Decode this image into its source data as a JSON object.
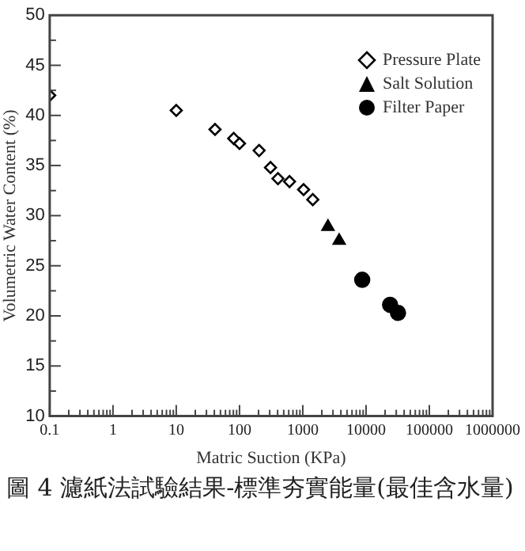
{
  "chart_data": {
    "type": "scatter",
    "xlabel": "Matric Suction (KPa)",
    "ylabel": "Volumetric Water Content (%)",
    "annotations": [
      "圖 4 濾紙法試驗結果-標準夯實能量(最佳含水量)"
    ],
    "log": "x",
    "xlim": [
      0.1,
      1000000
    ],
    "ylim": [
      10,
      50
    ],
    "xticks": [
      {
        "value": 0.1,
        "label": "0.1"
      },
      {
        "value": 0.2,
        "label": null
      },
      {
        "value": 0.3,
        "label": null
      },
      {
        "value": 0.4,
        "label": null
      },
      {
        "value": 0.5,
        "label": null
      },
      {
        "value": 0.6,
        "label": null
      },
      {
        "value": 0.7,
        "label": null
      },
      {
        "value": 0.8,
        "label": null
      },
      {
        "value": 0.9,
        "label": null
      },
      1,
      {
        "value": 2,
        "label": null
      },
      {
        "value": 3,
        "label": null
      },
      {
        "value": 4,
        "label": null
      },
      {
        "value": 5,
        "label": null
      },
      {
        "value": 6,
        "label": null
      },
      {
        "value": 7,
        "label": null
      },
      {
        "value": 8,
        "label": null
      },
      {
        "value": 9,
        "label": null
      },
      10,
      {
        "value": 20,
        "label": null
      },
      {
        "value": 30,
        "label": null
      },
      {
        "value": 40,
        "label": null
      },
      {
        "value": 50,
        "label": null
      },
      {
        "value": 60,
        "label": null
      },
      {
        "value": 70,
        "label": null
      },
      {
        "value": 80,
        "label": null
      },
      {
        "value": 90,
        "label": null
      },
      100,
      {
        "value": 200,
        "label": null
      },
      {
        "value": 300,
        "label": null
      },
      {
        "value": 400,
        "label": null
      },
      {
        "value": 500,
        "label": null
      },
      {
        "value": 600,
        "label": null
      },
      {
        "value": 700,
        "label": null
      },
      {
        "value": 800,
        "label": null
      },
      {
        "value": 900,
        "label": null
      },
      1000,
      {
        "value": 2000,
        "label": null
      },
      {
        "value": 3000,
        "label": null
      },
      {
        "value": 4000,
        "label": null
      },
      {
        "value": 5000,
        "label": null
      },
      {
        "value": 6000,
        "label": null
      },
      {
        "value": 7000,
        "label": null
      },
      {
        "value": 8000,
        "label": null
      },
      {
        "value": 9000,
        "label": null
      },
      10000,
      {
        "value": 20000,
        "label": null
      },
      {
        "value": 30000,
        "label": null
      },
      {
        "value": 40000,
        "label": null
      },
      {
        "value": 50000,
        "label": null
      },
      {
        "value": 60000,
        "label": null
      },
      {
        "value": 70000,
        "label": null
      },
      {
        "value": 80000,
        "label": null
      },
      {
        "value": 90000,
        "label": null
      },
      100000,
      {
        "value": 200000,
        "label": null
      },
      {
        "value": 300000,
        "label": null
      },
      {
        "value": 400000,
        "label": null
      },
      {
        "value": 500000,
        "label": null
      },
      {
        "value": 600000,
        "label": null
      },
      {
        "value": 700000,
        "label": null
      },
      {
        "value": 800000,
        "label": null
      },
      {
        "value": 900000,
        "label": null
      },
      1000000
    ],
    "yticks": [
      10,
      {
        "value": 12.5,
        "label": null
      },
      15,
      {
        "value": 17.5,
        "label": null
      },
      20,
      {
        "value": 22.5,
        "label": null
      },
      25,
      {
        "value": 27.5,
        "label": null
      },
      30,
      {
        "value": 32.5,
        "label": null
      },
      35,
      {
        "value": 37.5,
        "label": null
      },
      40,
      {
        "value": 42.5,
        "label": null
      },
      45,
      {
        "value": 47.5,
        "label": null
      },
      50
    ],
    "grid": false,
    "legend": "top right",
    "series": [
      {
        "name": "Pressure Plate",
        "color": "#000000",
        "marker": "diamond",
        "x": [
          0.1,
          10,
          41,
          81,
          100,
          204,
          309,
          405,
          617,
          1030,
          1440
        ],
        "values": [
          42,
          40.5,
          38.6,
          37.7,
          37.2,
          36.5,
          34.8,
          33.7,
          33.4,
          32.6,
          31.6
        ]
      },
      {
        "name": "Salt Solution",
        "color": "#000000",
        "marker": "triangle",
        "x": [
          2500,
          3760
        ],
        "values": [
          28.9,
          27.5
        ]
      },
      {
        "name": "Filter Paper",
        "color": "#000000",
        "marker": "circle",
        "x": [
          8700,
          24000,
          32000
        ],
        "values": [
          23.6,
          21.1,
          20.3
        ]
      }
    ]
  }
}
